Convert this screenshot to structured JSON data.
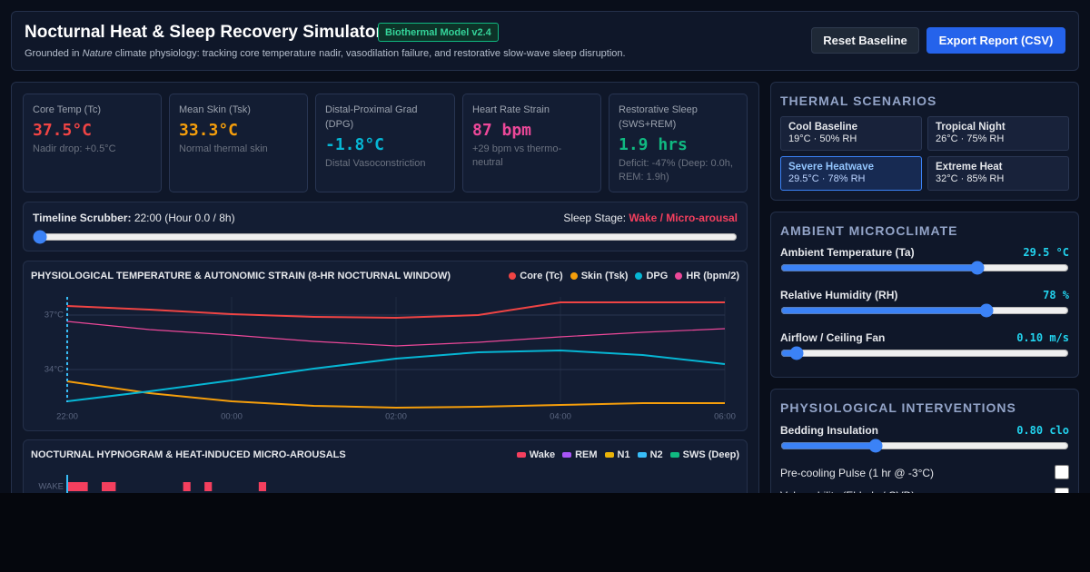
{
  "header": {
    "title": "Nocturnal Heat & Sleep Recovery Simulator",
    "badge": "Biothermal Model v2.4",
    "subtitle_pre": "Grounded in",
    "subtitle_em": "Nature",
    "subtitle_post": "climate physiology: tracking core temperature nadir, vasodilation failure, and restorative slow-wave sleep disruption.",
    "buttons": [
      "Reset Baseline",
      "Export Report (CSV)"
    ]
  },
  "cards": [
    {
      "label": "Core Temp (Tc)",
      "value": "37.5°C",
      "note": "Nadir drop: +0.5°C",
      "color": "#ef4444"
    },
    {
      "label": "Mean Skin (Tsk)",
      "value": "33.3°C",
      "note": "Normal thermal skin",
      "color": "#f59e0b"
    },
    {
      "label": "Distal-Proximal Grad (DPG)",
      "value": "-1.8°C",
      "note": "Distal Vasoconstriction",
      "color": "#06b6d4"
    },
    {
      "label": "Heart Rate Strain",
      "value": "87 bpm",
      "note": "+29 bpm vs thermo-neutral",
      "color": "#ec4899"
    },
    {
      "label": "Restorative Sleep (SWS+REM)",
      "value": "1.9 hrs",
      "note": "Deficit: -47% (Deep: 0.0h, REM: 1.9h)",
      "color": "#10b981"
    }
  ],
  "scrubber": {
    "label": "Timeline Scrubber:",
    "time": "22:00 (Hour 0.0 / 8h)",
    "stage_label": "Sleep Stage:",
    "stage": "Wake / Micro-arousal",
    "value": 0,
    "range": [
      0,
      8
    ]
  },
  "chart_data": {
    "type": "line",
    "title": "PHYSIOLOGICAL TEMPERATURE & AUTONOMIC STRAIN (8-HR NOCTURNAL WINDOW)",
    "x": [
      0,
      1,
      2,
      3,
      4,
      5,
      6,
      7,
      8
    ],
    "xlim": [
      0,
      8
    ],
    "xticks": [
      {
        "value": 0,
        "label": "22:00"
      },
      {
        "value": 2,
        "label": "00:00"
      },
      {
        "value": 4,
        "label": "02:00"
      },
      {
        "value": 6,
        "label": "04:00"
      },
      {
        "value": 8,
        "label": "06:00"
      }
    ],
    "ylim": [
      31.7,
      38
    ],
    "yticks": [
      {
        "value": 34,
        "label": "34°C"
      },
      {
        "value": 37,
        "label": "37°C"
      }
    ],
    "grid": true,
    "series": [
      {
        "name": "Core (Tc)",
        "color": "#ef4444",
        "values": [
          37.5,
          37.3,
          37.05,
          36.9,
          36.85,
          37.0,
          37.7,
          37.7,
          37.7
        ]
      },
      {
        "name": "Skin (Tsk)",
        "color": "#f59e0b",
        "values": [
          33.35,
          32.7,
          32.25,
          32.0,
          31.9,
          31.95,
          32.05,
          32.15,
          32.15
        ]
      },
      {
        "name": "DPG",
        "color": "#06b6d4",
        "values": [
          32.25,
          32.8,
          33.4,
          34.05,
          34.6,
          34.95,
          35.05,
          34.8,
          34.3
        ]
      },
      {
        "name": "HR (bpm/2)",
        "color": "#ec4899",
        "values": [
          36.65,
          36.2,
          35.9,
          35.55,
          35.3,
          35.5,
          35.8,
          36.05,
          36.25
        ]
      }
    ]
  },
  "hypnogram": {
    "title": "NOCTURNAL HYPNOGRAM & HEAT-INDUCED MICRO-AROUSALS",
    "stages": [
      {
        "name": "Wake",
        "color": "#f43f5e"
      },
      {
        "name": "REM",
        "color": "#a855f7"
      },
      {
        "name": "N1",
        "color": "#eab308"
      },
      {
        "name": "N2",
        "color": "#38bdf8"
      },
      {
        "name": "SWS (Deep)",
        "color": "#10b981"
      }
    ],
    "row_label": "WAKE",
    "xlim": [
      0,
      8
    ],
    "wake_blocks": [
      [
        0,
        0.25
      ],
      [
        0.42,
        0.59
      ],
      [
        1.41,
        1.5
      ],
      [
        1.67,
        1.76
      ],
      [
        2.33,
        2.42
      ]
    ]
  },
  "scenarios": {
    "title": "THERMAL SCENARIOS",
    "items": [
      {
        "name": "Cool Baseline",
        "detail": "19°C · 50% RH"
      },
      {
        "name": "Tropical Night",
        "detail": "26°C · 75% RH"
      },
      {
        "name": "Severe Heatwave",
        "detail": "29.5°C · 78% RH",
        "active": true
      },
      {
        "name": "Extreme Heat",
        "detail": "32°C · 85% RH"
      }
    ]
  },
  "ambient": {
    "title": "AMBIENT MICROCLIMATE",
    "sliders": [
      {
        "label": "Ambient Temperature (Ta)",
        "value": 29.5,
        "value_label": "29.5 °C",
        "range": [
          15,
          36
        ]
      },
      {
        "label": "Relative Humidity (RH)",
        "value": 78,
        "value_label": "78 %",
        "range": [
          20,
          100
        ]
      },
      {
        "label": "Airflow / Ceiling Fan",
        "value": 0.1,
        "value_label": "0.10 m/s",
        "range": [
          0,
          3
        ]
      }
    ]
  },
  "interventions": {
    "title": "PHYSIOLOGICAL INTERVENTIONS",
    "slider": {
      "label": "Bedding Insulation",
      "value": 0.8,
      "value_label": "0.80 clo",
      "range": [
        0,
        2.5
      ]
    },
    "toggles": [
      {
        "label": "Pre-cooling Pulse (1 hr @ -3°C)",
        "checked": false
      },
      {
        "label": "Vulnerability (Elderly / CVD)",
        "checked": false
      }
    ]
  }
}
